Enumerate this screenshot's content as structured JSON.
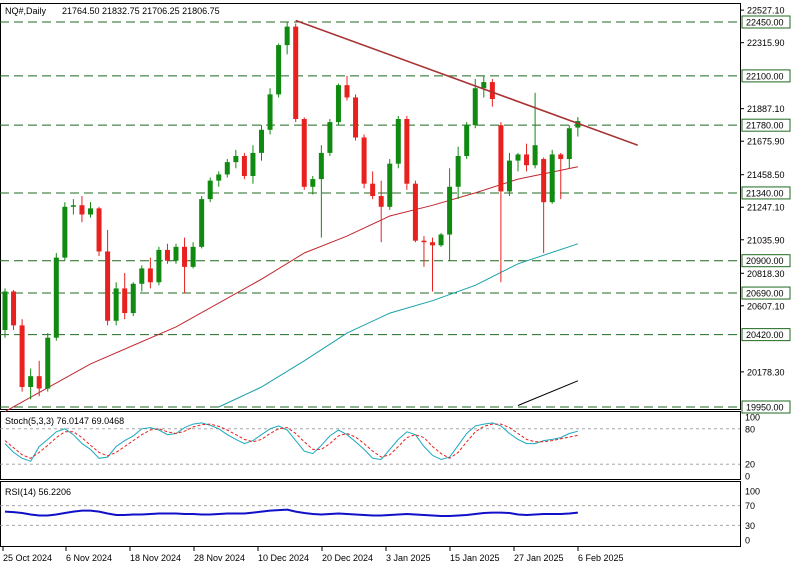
{
  "header": {
    "symbol": "NQ#,Daily",
    "ohlc": "21764.50 21832.75 21706.25 21806.75"
  },
  "stoch": {
    "label": "Stoch(5,3,3) 76.0147 69.0468",
    "levels": [
      "100",
      "80",
      "20",
      "0"
    ]
  },
  "rsi": {
    "label": "RSI(14) 56.2206",
    "levels": [
      "100",
      "70",
      "30",
      "0"
    ]
  },
  "price_axis_labels": [
    "22527.10",
    "22315.90",
    "21887.10",
    "21675.90",
    "21458.50",
    "21247.10",
    "21035.90",
    "20818.30",
    "20607.10",
    "20178.30"
  ],
  "hlines": [
    22450.0,
    22100.0,
    21780.0,
    21340.0,
    20900.0,
    20690.0,
    20420.0,
    19950.0
  ],
  "hline_labels": [
    "22450.00",
    "22100.00",
    "21780.00",
    "21340.00",
    "20900.00",
    "20690.00",
    "20420.00",
    "19950.00"
  ],
  "colors": {
    "up": "#118a11",
    "down": "#e8201e",
    "trend": "#a83232",
    "ma50": "#c0272d",
    "ma100": "#17a0a8",
    "ma200": "#000000",
    "hline": "#1f6a1f",
    "stoch_main": "#1aa8c0",
    "stoch_signal": "#e8201e",
    "rsi": "#1010c8"
  },
  "chart_data": {
    "type": "candlestick",
    "x_labels": [
      "25 Oct 2024",
      "6 Nov 2024",
      "18 Nov 2024",
      "28 Nov 2024",
      "10 Dec 2024",
      "20 Dec 2024",
      "3 Jan 2025",
      "15 Jan 2025",
      "27 Jan 2025",
      "6 Feb 2025"
    ],
    "ylim": [
      19950,
      22527.1
    ],
    "candles": [
      {
        "o": 20450,
        "h": 20720,
        "l": 20400,
        "c": 20700
      },
      {
        "o": 20700,
        "h": 20710,
        "l": 20450,
        "c": 20480
      },
      {
        "o": 20480,
        "h": 20520,
        "l": 20050,
        "c": 20080
      },
      {
        "o": 20080,
        "h": 20200,
        "l": 20000,
        "c": 20150
      },
      {
        "o": 20150,
        "h": 20250,
        "l": 20020,
        "c": 20070
      },
      {
        "o": 20070,
        "h": 20430,
        "l": 20050,
        "c": 20400
      },
      {
        "o": 20400,
        "h": 20950,
        "l": 20380,
        "c": 20920
      },
      {
        "o": 20920,
        "h": 21280,
        "l": 20900,
        "c": 21250
      },
      {
        "o": 21250,
        "h": 21300,
        "l": 21200,
        "c": 21260
      },
      {
        "o": 21260,
        "h": 21320,
        "l": 21150,
        "c": 21200
      },
      {
        "o": 21200,
        "h": 21280,
        "l": 21180,
        "c": 21240
      },
      {
        "o": 21240,
        "h": 21250,
        "l": 20930,
        "c": 20960
      },
      {
        "o": 20960,
        "h": 21100,
        "l": 20480,
        "c": 20510
      },
      {
        "o": 20510,
        "h": 20760,
        "l": 20480,
        "c": 20720
      },
      {
        "o": 20720,
        "h": 20820,
        "l": 20520,
        "c": 20560
      },
      {
        "o": 20560,
        "h": 20760,
        "l": 20540,
        "c": 20750
      },
      {
        "o": 20750,
        "h": 20870,
        "l": 20700,
        "c": 20850
      },
      {
        "o": 20850,
        "h": 20920,
        "l": 20720,
        "c": 20760
      },
      {
        "o": 20760,
        "h": 20990,
        "l": 20740,
        "c": 20970
      },
      {
        "o": 20970,
        "h": 21010,
        "l": 20880,
        "c": 20900
      },
      {
        "o": 20900,
        "h": 21010,
        "l": 20880,
        "c": 20990
      },
      {
        "o": 20990,
        "h": 21050,
        "l": 20690,
        "c": 20860
      },
      {
        "o": 20860,
        "h": 21020,
        "l": 20850,
        "c": 20990
      },
      {
        "o": 20990,
        "h": 21320,
        "l": 20980,
        "c": 21300
      },
      {
        "o": 21300,
        "h": 21440,
        "l": 21280,
        "c": 21420
      },
      {
        "o": 21420,
        "h": 21480,
        "l": 21380,
        "c": 21460
      },
      {
        "o": 21460,
        "h": 21560,
        "l": 21440,
        "c": 21540
      },
      {
        "o": 21540,
        "h": 21620,
        "l": 21500,
        "c": 21580
      },
      {
        "o": 21580,
        "h": 21600,
        "l": 21430,
        "c": 21450
      },
      {
        "o": 21450,
        "h": 21650,
        "l": 21400,
        "c": 21600
      },
      {
        "o": 21600,
        "h": 21780,
        "l": 21550,
        "c": 21750
      },
      {
        "o": 21750,
        "h": 22020,
        "l": 21720,
        "c": 21980
      },
      {
        "o": 21980,
        "h": 22310,
        "l": 21960,
        "c": 22300
      },
      {
        "o": 22300,
        "h": 22450,
        "l": 22240,
        "c": 22420
      },
      {
        "o": 22420,
        "h": 22440,
        "l": 21800,
        "c": 21820
      },
      {
        "o": 21820,
        "h": 21830,
        "l": 21360,
        "c": 21380
      },
      {
        "o": 21380,
        "h": 21450,
        "l": 21330,
        "c": 21430
      },
      {
        "o": 21430,
        "h": 21650,
        "l": 21050,
        "c": 21600
      },
      {
        "o": 21600,
        "h": 21820,
        "l": 21580,
        "c": 21800
      },
      {
        "o": 21800,
        "h": 22050,
        "l": 21780,
        "c": 22040
      },
      {
        "o": 22040,
        "h": 22100,
        "l": 21940,
        "c": 21960
      },
      {
        "o": 21960,
        "h": 21980,
        "l": 21680,
        "c": 21700
      },
      {
        "o": 21700,
        "h": 21720,
        "l": 21370,
        "c": 21400
      },
      {
        "o": 21400,
        "h": 21480,
        "l": 21300,
        "c": 21320
      },
      {
        "o": 21320,
        "h": 21420,
        "l": 21020,
        "c": 21250
      },
      {
        "o": 21250,
        "h": 21560,
        "l": 21230,
        "c": 21530
      },
      {
        "o": 21530,
        "h": 21840,
        "l": 21500,
        "c": 21820
      },
      {
        "o": 21820,
        "h": 21840,
        "l": 21360,
        "c": 21400
      },
      {
        "o": 21400,
        "h": 21420,
        "l": 21020,
        "c": 21030
      },
      {
        "o": 21030,
        "h": 21060,
        "l": 20860,
        "c": 21020
      },
      {
        "o": 21020,
        "h": 21050,
        "l": 20700,
        "c": 21000
      },
      {
        "o": 21000,
        "h": 21080,
        "l": 20990,
        "c": 21070
      },
      {
        "o": 21070,
        "h": 21500,
        "l": 20900,
        "c": 21380
      },
      {
        "o": 21380,
        "h": 21640,
        "l": 21300,
        "c": 21580
      },
      {
        "o": 21580,
        "h": 21800,
        "l": 21560,
        "c": 21780
      },
      {
        "o": 21780,
        "h": 22080,
        "l": 21760,
        "c": 22020
      },
      {
        "o": 22020,
        "h": 22100,
        "l": 21960,
        "c": 22060
      },
      {
        "o": 22060,
        "h": 22080,
        "l": 21900,
        "c": 21950
      },
      {
        "o": 21780,
        "h": 21800,
        "l": 20760,
        "c": 21350
      },
      {
        "o": 21350,
        "h": 21600,
        "l": 21320,
        "c": 21550
      },
      {
        "o": 21550,
        "h": 21600,
        "l": 21480,
        "c": 21590
      },
      {
        "o": 21590,
        "h": 21660,
        "l": 21480,
        "c": 21520
      },
      {
        "o": 21520,
        "h": 21990,
        "l": 21500,
        "c": 21650
      },
      {
        "o": 21560,
        "h": 21570,
        "l": 20950,
        "c": 21280
      },
      {
        "o": 21280,
        "h": 21620,
        "l": 21270,
        "c": 21590
      },
      {
        "o": 21590,
        "h": 21600,
        "l": 21300,
        "c": 21560
      },
      {
        "o": 21560,
        "h": 21780,
        "l": 21500,
        "c": 21760
      },
      {
        "o": 21764.5,
        "h": 21832.75,
        "l": 21706.25,
        "c": 21806.75
      }
    ],
    "ma50": [
      [
        0,
        19920
      ],
      [
        10,
        20230
      ],
      [
        20,
        20470
      ],
      [
        30,
        20780
      ],
      [
        35,
        20950
      ],
      [
        40,
        21060
      ],
      [
        45,
        21190
      ],
      [
        50,
        21260
      ],
      [
        55,
        21340
      ],
      [
        60,
        21430
      ],
      [
        67,
        21510
      ]
    ],
    "ma100": [
      [
        25,
        19950
      ],
      [
        30,
        20080
      ],
      [
        35,
        20250
      ],
      [
        40,
        20430
      ],
      [
        45,
        20560
      ],
      [
        50,
        20640
      ],
      [
        55,
        20740
      ],
      [
        60,
        20880
      ],
      [
        67,
        21010
      ]
    ],
    "ma200": [
      [
        60,
        19960
      ],
      [
        67,
        20120
      ]
    ],
    "trendline": [
      [
        34,
        22460
      ],
      [
        74,
        21650
      ]
    ],
    "stoch_main": [
      55,
      40,
      30,
      25,
      50,
      62,
      75,
      80,
      70,
      55,
      45,
      30,
      32,
      50,
      60,
      68,
      80,
      82,
      78,
      70,
      72,
      82,
      88,
      90,
      86,
      80,
      70,
      62,
      55,
      60,
      70,
      80,
      85,
      78,
      60,
      42,
      38,
      52,
      68,
      78,
      70,
      58,
      45,
      30,
      28,
      45,
      62,
      75,
      70,
      50,
      35,
      28,
      32,
      52,
      72,
      85,
      88,
      90,
      85,
      72,
      62,
      55,
      55,
      60,
      62,
      65,
      72,
      76
    ],
    "stoch_signal": [
      60,
      48,
      36,
      30,
      40,
      52,
      65,
      75,
      75,
      65,
      52,
      40,
      34,
      40,
      50,
      60,
      70,
      78,
      80,
      75,
      72,
      76,
      83,
      87,
      88,
      84,
      78,
      70,
      62,
      58,
      62,
      72,
      80,
      82,
      72,
      58,
      45,
      45,
      55,
      68,
      72,
      66,
      55,
      42,
      32,
      36,
      50,
      65,
      70,
      65,
      50,
      38,
      30,
      40,
      58,
      75,
      84,
      88,
      88,
      82,
      72,
      62,
      58,
      58,
      60,
      63,
      66,
      69
    ],
    "rsi": [
      58,
      57,
      55,
      52,
      50,
      50,
      52,
      55,
      58,
      60,
      60,
      58,
      54,
      51,
      51,
      52,
      52,
      53,
      54,
      54,
      54,
      53,
      53,
      52,
      52,
      53,
      54,
      54,
      54,
      56,
      58,
      60,
      61,
      62,
      58,
      55,
      53,
      52,
      53,
      54,
      53,
      52,
      51,
      50,
      50,
      51,
      52,
      53,
      52,
      51,
      50,
      49,
      49,
      50,
      51,
      53,
      55,
      56,
      56,
      55,
      52,
      51,
      52,
      53,
      53,
      53,
      54,
      56
    ]
  }
}
